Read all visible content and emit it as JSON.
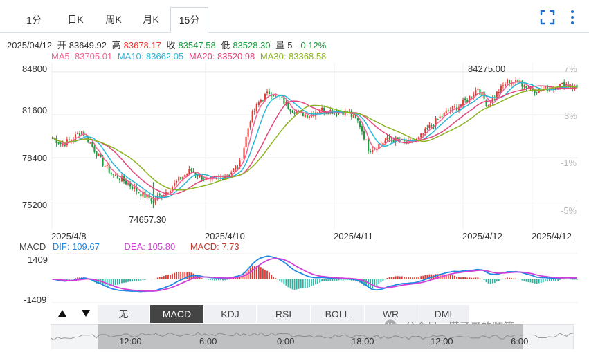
{
  "tabs": [
    "1分",
    "日K",
    "周K",
    "月K",
    "15分"
  ],
  "active_tab": "15分",
  "info": {
    "date": "2025/04/12",
    "open_label": "开",
    "open": "83649.92",
    "high_label": "高",
    "high": "83678.17",
    "close_label": "收",
    "close": "83547.58",
    "low_label": "低",
    "low": "83528.30",
    "vol_label": "量",
    "vol": "5",
    "change": "-0.12%"
  },
  "ma": {
    "ma5": "MA5: 83705.01",
    "ma10": "MA10: 83662.05",
    "ma20": "MA20: 83520.98",
    "ma30": "MA30: 83368.58"
  },
  "price_axis": [
    "84800",
    "81600",
    "78400",
    "75200"
  ],
  "pct_axis": [
    "7%",
    "3%",
    "-1%",
    "-5%"
  ],
  "annotations": {
    "high": "84275.00",
    "low": "74657.30"
  },
  "x_axis": [
    "2025/4/8",
    "2025/4/10",
    "2025/4/11",
    "2025/4/12",
    "2025/4/12"
  ],
  "macd": {
    "name": "MACD",
    "dif": "DIF: 109.67",
    "dea": "DEA: 105.80",
    "macd": "MACD: 7.73",
    "top": "1409",
    "bottom": "-1409"
  },
  "indicators": [
    "无",
    "MACD",
    "KDJ",
    "RSI",
    "BOLL",
    "WR",
    "DMI"
  ],
  "active_indicator": "MACD",
  "scroller_labels": [
    "12:00",
    "6:00",
    "0:00",
    "18:00",
    "12:00",
    "6:00"
  ],
  "watermark": "公众号 · 塔子哥的随笔",
  "colors": {
    "up": "#e53935",
    "down": "#1b9e3e",
    "ma5": "#f06292",
    "ma10": "#29b6d8",
    "ma20": "#e0457b",
    "ma30": "#8ab320",
    "dif": "#1e88e5",
    "dea": "#d040d8",
    "accent": "#1f6fd1"
  },
  "icons": {
    "fullscreen": "fullscreen-icon",
    "more": "more-vertical-icon",
    "watermark": "wechat-icon"
  },
  "chart_data": {
    "type": "candlestick",
    "interval": "15分",
    "price_axis_ticks": [
      84800,
      81600,
      78400,
      75200
    ],
    "percent_axis_ticks": [
      "7%",
      "3%",
      "-1%",
      "-5%"
    ],
    "x_tick_labels": [
      "2025/4/8",
      "2025/4/10",
      "2025/4/11",
      "2025/4/12",
      "2025/4/12"
    ],
    "close_path": [
      79900,
      79400,
      79800,
      80400,
      79300,
      78100,
      77200,
      76800,
      76300,
      75700,
      75300,
      75600,
      76200,
      76900,
      77500,
      77000,
      76600,
      76900,
      77300,
      78000,
      81300,
      82700,
      83300,
      82900,
      82100,
      81700,
      81600,
      82000,
      81900,
      81900,
      81700,
      81000,
      79000,
      79400,
      79800,
      79700,
      79400,
      79800,
      80600,
      81300,
      81900,
      82200,
      82800,
      83600,
      82300,
      83300,
      84100,
      84000,
      83700,
      83400,
      83600,
      83700,
      83900,
      83600
    ],
    "high": 84275.0,
    "low": 74657.3,
    "last": {
      "date": "2025/04/12",
      "open": 83649.92,
      "high": 83678.17,
      "close": 83547.58,
      "low": 83528.3,
      "volume": 5,
      "change_pct": -0.12
    },
    "ma": {
      "MA5": 83705.01,
      "MA10": 83662.05,
      "MA20": 83520.98,
      "MA30": 83368.58
    },
    "macd": {
      "DIF": 109.67,
      "DEA": 105.8,
      "MACD": 7.73,
      "range": [
        -1409,
        1409
      ]
    }
  }
}
